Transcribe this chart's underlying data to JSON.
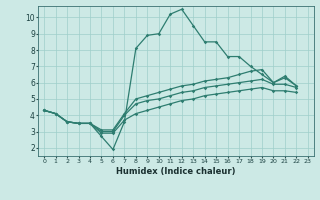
{
  "xlabel": "Humidex (Indice chaleur)",
  "bg_color": "#cce9e5",
  "grid_color": "#9fcfca",
  "line_color": "#2e7d70",
  "xlim": [
    -0.5,
    23.5
  ],
  "ylim": [
    1.5,
    10.7
  ],
  "xticks": [
    0,
    1,
    2,
    3,
    4,
    5,
    6,
    7,
    8,
    9,
    10,
    11,
    12,
    13,
    14,
    15,
    16,
    17,
    18,
    19,
    20,
    21,
    22,
    23
  ],
  "yticks": [
    2,
    3,
    4,
    5,
    6,
    7,
    8,
    9,
    10
  ],
  "line1_x": [
    0,
    1,
    2,
    3,
    4,
    5,
    6,
    7,
    8,
    9,
    10,
    11,
    12,
    13,
    14,
    15,
    16,
    17,
    18,
    19,
    20,
    21,
    22
  ],
  "line1_y": [
    4.3,
    4.1,
    3.6,
    3.5,
    3.5,
    2.7,
    1.9,
    3.6,
    8.1,
    8.9,
    9.0,
    10.2,
    10.5,
    9.5,
    8.5,
    8.5,
    7.6,
    7.6,
    7.0,
    6.5,
    6.0,
    6.4,
    5.8
  ],
  "line2_x": [
    0,
    1,
    2,
    3,
    4,
    5,
    6,
    7,
    8,
    9,
    10,
    11,
    12,
    13,
    14,
    15,
    16,
    17,
    18,
    19,
    20,
    21,
    22
  ],
  "line2_y": [
    4.3,
    4.1,
    3.6,
    3.5,
    3.5,
    3.1,
    3.1,
    4.1,
    5.0,
    5.2,
    5.4,
    5.6,
    5.8,
    5.9,
    6.1,
    6.2,
    6.3,
    6.5,
    6.7,
    6.8,
    6.0,
    6.3,
    5.8
  ],
  "line3_x": [
    0,
    1,
    2,
    3,
    4,
    5,
    6,
    7,
    8,
    9,
    10,
    11,
    12,
    13,
    14,
    15,
    16,
    17,
    18,
    19,
    20,
    21,
    22
  ],
  "line3_y": [
    4.3,
    4.1,
    3.6,
    3.5,
    3.5,
    3.0,
    3.0,
    4.0,
    4.7,
    4.9,
    5.0,
    5.2,
    5.4,
    5.5,
    5.7,
    5.8,
    5.9,
    6.0,
    6.1,
    6.2,
    5.9,
    5.9,
    5.7
  ],
  "line4_x": [
    0,
    1,
    2,
    3,
    4,
    5,
    6,
    7,
    8,
    9,
    10,
    11,
    12,
    13,
    14,
    15,
    16,
    17,
    18,
    19,
    20,
    21,
    22
  ],
  "line4_y": [
    4.3,
    4.1,
    3.6,
    3.5,
    3.5,
    2.9,
    2.9,
    3.7,
    4.1,
    4.3,
    4.5,
    4.7,
    4.9,
    5.0,
    5.2,
    5.3,
    5.4,
    5.5,
    5.6,
    5.7,
    5.5,
    5.5,
    5.4
  ]
}
